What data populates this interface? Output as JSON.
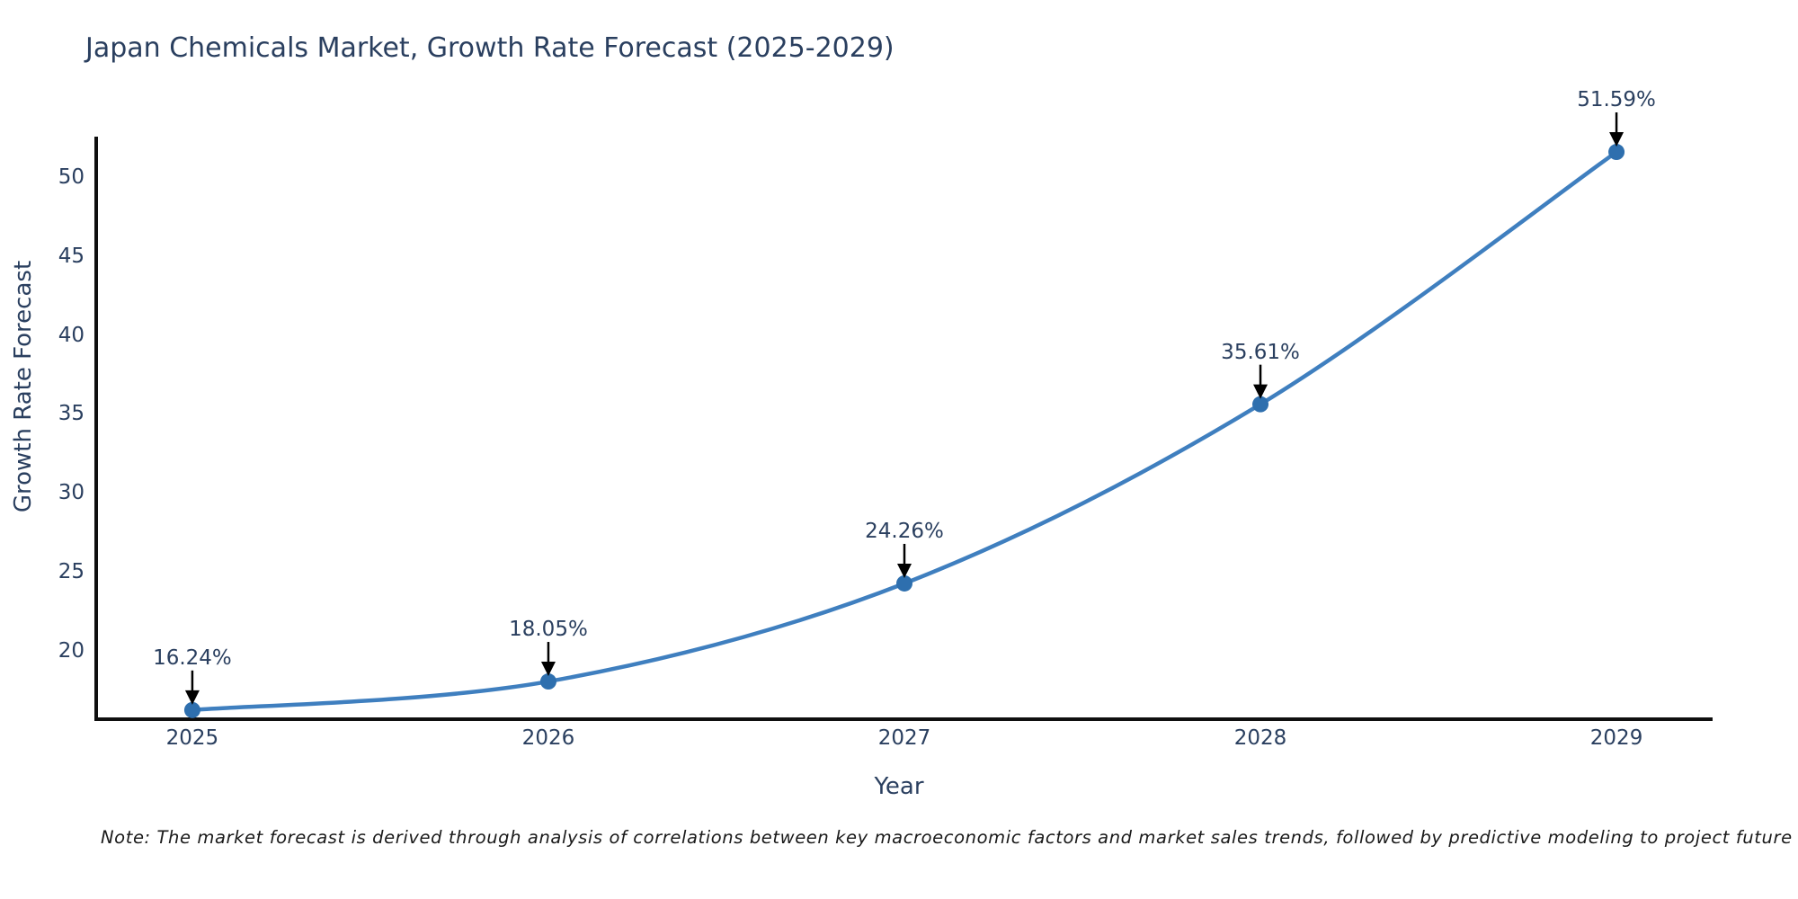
{
  "note": "Note: The market forecast is derived through analysis of correlations between key macroeconomic factors and market sales trends, followed by predictive modeling to project future sales.",
  "chart_data": {
    "type": "line",
    "title": "Japan Chemicals Market, Growth Rate Forecast (2025-2029)",
    "xlabel": "Year",
    "ylabel": "Growth Rate Forecast",
    "x": [
      2025,
      2026,
      2027,
      2028,
      2029
    ],
    "series": [
      {
        "name": "Growth Rate Forecast",
        "values": [
          16.24,
          18.05,
          24.26,
          35.61,
          51.59
        ]
      }
    ],
    "point_labels": [
      "16.24%",
      "18.05%",
      "24.26%",
      "35.61%",
      "51.59%"
    ],
    "xticks": [
      "2025",
      "2026",
      "2027",
      "2028",
      "2029"
    ],
    "yticks": [
      20,
      25,
      30,
      35,
      40,
      45,
      50
    ],
    "xlim": [
      2024.73,
      2029.27
    ],
    "ylim": [
      15.66,
      52.56
    ],
    "grid": false,
    "legend": "none",
    "curve": "spline",
    "line_color": "#3f7fbf",
    "marker_color": "#2e6fae",
    "axis_color": "#0f0f0f",
    "text_color": "#2a3f5f",
    "arrow_color": "#000000"
  }
}
